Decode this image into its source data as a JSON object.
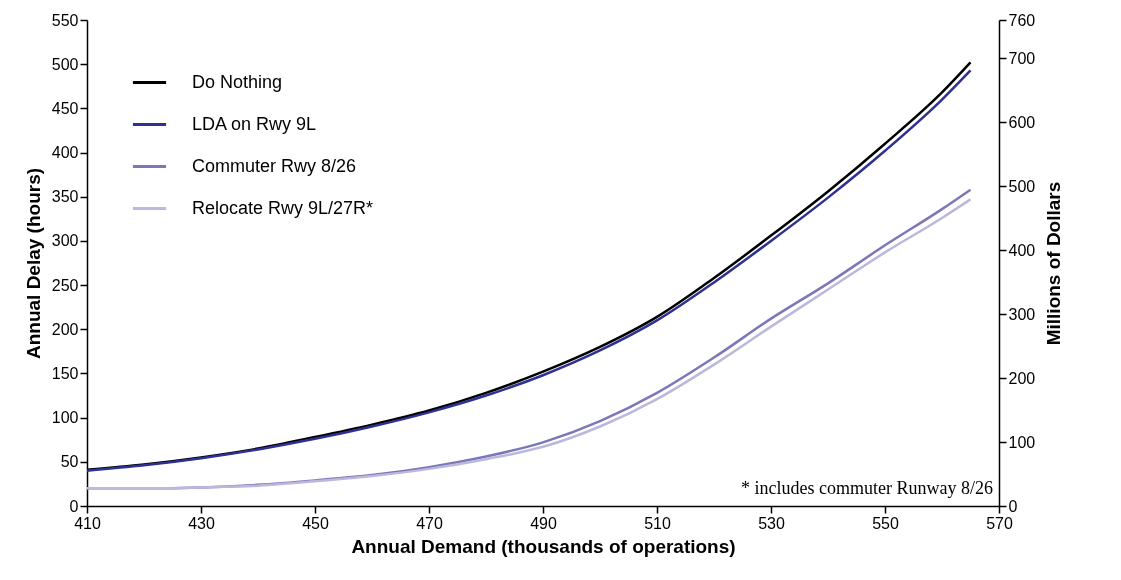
{
  "chart_data": {
    "type": "line",
    "xlabel": "Annual Demand (thousands of operations)",
    "ylabel": "Annual Delay (hours)",
    "y2label": "Millions of Dollars",
    "x": [
      410,
      420,
      430,
      440,
      450,
      460,
      470,
      480,
      490,
      500,
      510,
      520,
      530,
      540,
      550,
      560,
      565
    ],
    "series": [
      {
        "name": "Do Nothing",
        "color": "#000000",
        "values": [
          41,
          47,
          55,
          65,
          78,
          92,
          108,
          128,
          152,
          180,
          214,
          258,
          306,
          356,
          410,
          468,
          502
        ]
      },
      {
        "name": "LDA on Rwy 9L",
        "color": "#2e3192",
        "values": [
          40,
          46,
          54,
          64,
          76,
          90,
          106,
          125,
          148,
          176,
          210,
          253,
          300,
          349,
          402,
          460,
          493
        ]
      },
      {
        "name": "Commuter Rwy 8/26",
        "color": "#7b77b8",
        "values": [
          20,
          20,
          21,
          24,
          29,
          35,
          44,
          56,
          72,
          96,
          128,
          168,
          212,
          252,
          295,
          336,
          358
        ]
      },
      {
        "name": "Relocate Rwy 9L/27R*",
        "color": "#bcb8dc",
        "values": [
          20,
          20,
          21,
          23,
          28,
          34,
          42,
          53,
          67,
          90,
          121,
          160,
          203,
          245,
          287,
          326,
          347
        ]
      }
    ],
    "xlim": [
      410,
      570
    ],
    "xticks": [
      410,
      430,
      450,
      470,
      490,
      510,
      530,
      550,
      570
    ],
    "ylim": [
      0,
      550
    ],
    "yticks": [
      0,
      50,
      100,
      150,
      200,
      250,
      300,
      350,
      400,
      450,
      500,
      550
    ],
    "y2lim": [
      0,
      760
    ],
    "y2ticks": [
      0,
      100,
      200,
      300,
      400,
      500,
      600,
      700,
      760
    ],
    "legend": "top left",
    "grid": false,
    "line_style": "solid",
    "annotations": [
      "* includes commuter Runway 8/26"
    ]
  }
}
